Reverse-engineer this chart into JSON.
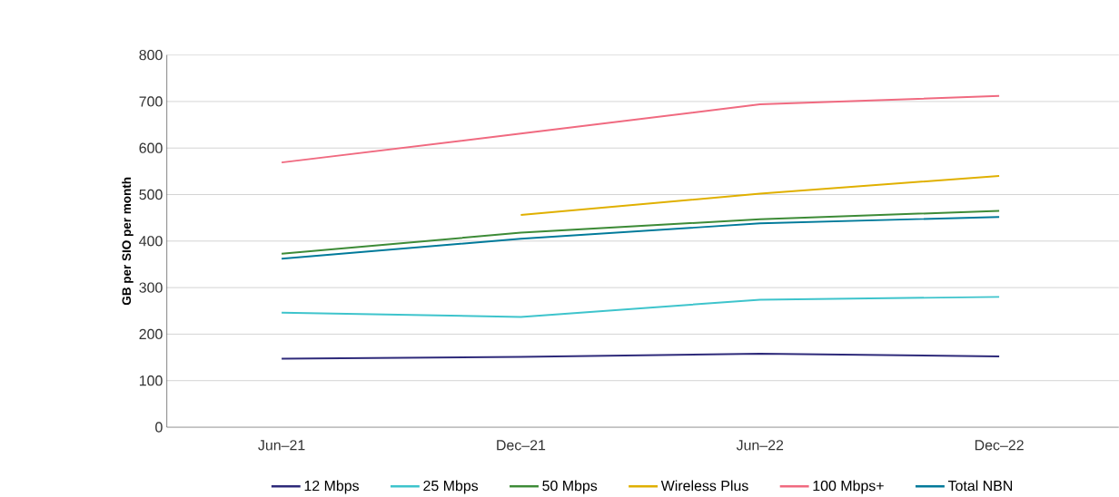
{
  "chart_data": {
    "type": "line",
    "ylabel": "GB per SIO per month",
    "categories": [
      "Jun–21",
      "Dec–21",
      "Jun–22",
      "Dec–22"
    ],
    "ylim": [
      0,
      800
    ],
    "yticks": [
      0,
      100,
      200,
      300,
      400,
      500,
      600,
      700,
      800
    ],
    "grid": "y",
    "legend": "bottom",
    "marker": "none",
    "line_style": "solid",
    "series": [
      {
        "name": "12 Mbps",
        "color": "#2e2a7a",
        "values": [
          147,
          151,
          158,
          152
        ]
      },
      {
        "name": "25 Mbps",
        "color": "#3ec4cc",
        "values": [
          246,
          237,
          274,
          280
        ]
      },
      {
        "name": "50 Mbps",
        "color": "#3d8b37",
        "values": [
          373,
          418,
          447,
          465
        ]
      },
      {
        "name": "Wireless Plus",
        "color": "#e0b000",
        "values": [
          null,
          456,
          502,
          540
        ]
      },
      {
        "name": "100 Mbps+",
        "color": "#f06a80",
        "values": [
          569,
          631,
          694,
          712
        ]
      },
      {
        "name": "Total NBN",
        "color": "#007a9a",
        "values": [
          362,
          405,
          438,
          452
        ]
      }
    ]
  }
}
